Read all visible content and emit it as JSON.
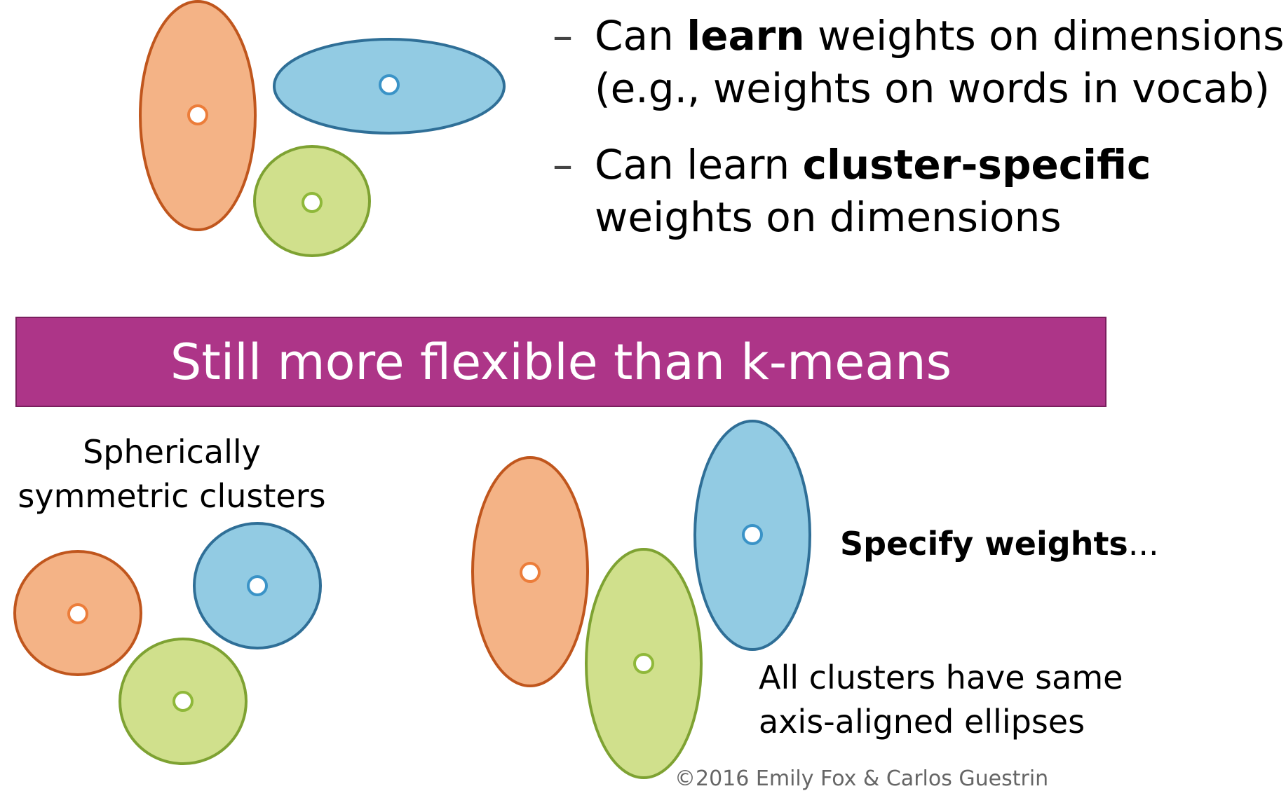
{
  "bullets": [
    {
      "prefix": "Can ",
      "bold": "learn",
      "line1_rest": " weights on dimensions",
      "line2": "(e.g., weights on words in vocab)"
    },
    {
      "prefix": "Can learn ",
      "bold": "cluster-specific",
      "line1_rest": "",
      "line2": "weights on dimensions"
    }
  ],
  "dash": "–",
  "banner": {
    "text": "Still more flexible than k-means",
    "color": "#ad3588"
  },
  "left_caption": {
    "line1": "Spherically",
    "line2": "symmetric clusters"
  },
  "right_caption": {
    "bold": "Specify weights",
    "rest": "..."
  },
  "bottom_caption": {
    "line1": "All clusters have same",
    "line2": "axis-aligned ellipses"
  },
  "footer": "©2016 Emily Fox & Carlos Guestrin",
  "colors": {
    "orange_fill": "#f4b386",
    "orange_stroke": "#c0561d",
    "orange_center": "#ec7d3a",
    "blue_fill": "#92cbe3",
    "blue_stroke": "#2f6f97",
    "blue_center": "#3a93c7",
    "green_fill": "#d0e08c",
    "green_stroke": "#7ea232",
    "green_center": "#8fb83a"
  }
}
